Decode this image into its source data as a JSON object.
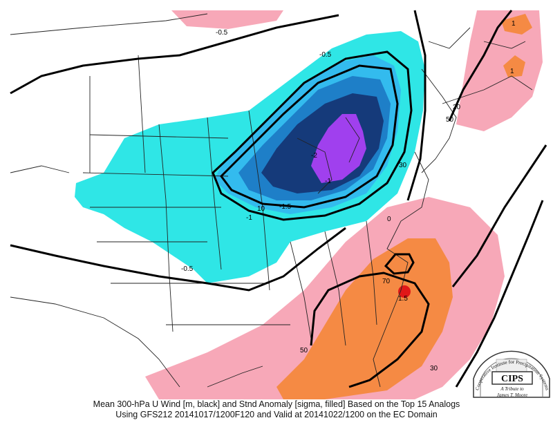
{
  "caption": {
    "line1": "Mean 300-hPa U Wind [m, black] and Stnd Anomaly [sigma, filled] Based on the Top 15 Analogs",
    "line2": "Using GFS212 20141017/1200F120 and Valid at 20141022/1200 on the EC Domain"
  },
  "logo": {
    "org_text": "Cooperative Institute for Precipitation Systems",
    "acronym": "CIPS",
    "tribute_line1": "A Tribute to",
    "tribute_line2": "James T. Moore"
  },
  "labels": {
    "neg_0_5_top": "-0.5",
    "neg_0_5_ne": "-0.5",
    "neg_1": "-1",
    "neg_1_5": "-1.5",
    "neg_2": "-2",
    "neg_0_5_sw": "-0.5",
    "neg_1_north": "-1",
    "pos_1_ne": "1",
    "pos_1_ne2": "1",
    "pos_1_5": "1.5",
    "w10": "10",
    "w20": "20",
    "w30_east": "30",
    "w30_se": "30",
    "w50_ne": "50",
    "w50_gulf": "50",
    "w70": "70",
    "zero_mark": "0"
  },
  "colors": {
    "cyan": "#2fe6e6",
    "light_blue": "#33bbee",
    "mid_blue": "#1e7fc8",
    "dark_blue": "#153a7a",
    "purple": "#a040ee",
    "pink": "#f7a8b8",
    "orange": "#f58a44",
    "red": "#e01818"
  }
}
